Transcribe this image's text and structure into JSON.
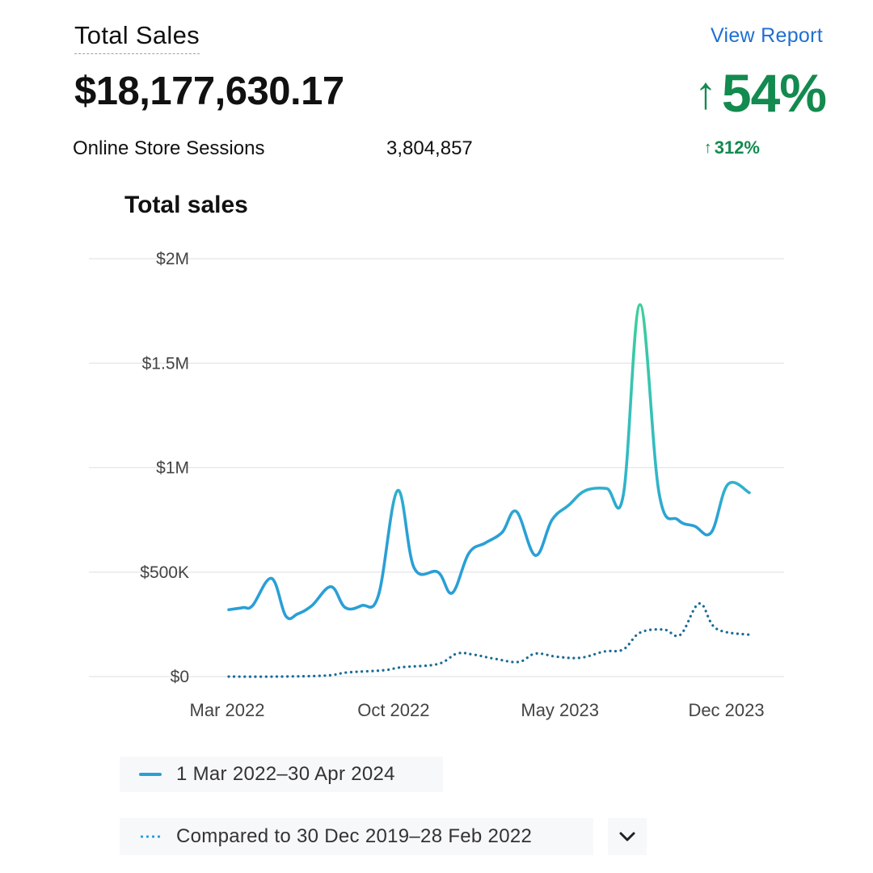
{
  "header": {
    "title": "Total Sales",
    "total": "$18,177,630.17",
    "sessions_label": "Online Store Sessions",
    "sessions_value": "3,804,857",
    "view_report": "View Report",
    "sales_change": "54%",
    "sessions_change": "312%"
  },
  "colors": {
    "positive": "#138a4f",
    "link": "#1f6fd1",
    "line_primary": "#2a9fd6",
    "line_peak": "#3ccf9a",
    "line_compare": "#1a6b96"
  },
  "icons": {
    "up": "arrow-up-icon",
    "chevron": "chevron-down-icon"
  },
  "legend": {
    "current": "1 Mar 2022–30 Apr 2024",
    "compare": "Compared to 30 Dec 2019–28 Feb 2022"
  },
  "chart_data": {
    "type": "line",
    "title": "Total sales",
    "ylim": [
      0,
      2000000
    ],
    "yticks": [
      {
        "value": 0,
        "label": "$0"
      },
      {
        "value": 500000,
        "label": "$500K"
      },
      {
        "value": 1000000,
        "label": "$1M"
      },
      {
        "value": 1500000,
        "label": "$1.5M"
      },
      {
        "value": 2000000,
        "label": "$2M"
      }
    ],
    "xticks": [
      {
        "x": 0,
        "label": "Mar 2022"
      },
      {
        "x": 7,
        "label": "Oct 2022"
      },
      {
        "x": 14,
        "label": "May 2023"
      },
      {
        "x": 21,
        "label": "Dec 2023"
      }
    ],
    "xlim": [
      -0.2,
      25.5
    ],
    "grid": true,
    "series": [
      {
        "name": "1 Mar 2022–30 Apr 2024",
        "style": "solid",
        "points": [
          [
            0,
            320000
          ],
          [
            0.6,
            330000
          ],
          [
            1,
            340000
          ],
          [
            1.8,
            470000
          ],
          [
            2.4,
            290000
          ],
          [
            2.9,
            300000
          ],
          [
            3.5,
            340000
          ],
          [
            4.3,
            430000
          ],
          [
            4.9,
            330000
          ],
          [
            5.6,
            340000
          ],
          [
            6.3,
            390000
          ],
          [
            7.1,
            890000
          ],
          [
            7.8,
            520000
          ],
          [
            8.8,
            500000
          ],
          [
            9.4,
            400000
          ],
          [
            10.1,
            590000
          ],
          [
            10.8,
            640000
          ],
          [
            11.5,
            690000
          ],
          [
            12.1,
            790000
          ],
          [
            12.9,
            580000
          ],
          [
            13.6,
            750000
          ],
          [
            14.3,
            820000
          ],
          [
            15,
            890000
          ],
          [
            15.9,
            900000
          ],
          [
            16.6,
            870000
          ],
          [
            17.3,
            1780000
          ],
          [
            18.1,
            880000
          ],
          [
            18.9,
            750000
          ],
          [
            19.6,
            720000
          ],
          [
            20.3,
            690000
          ],
          [
            21,
            920000
          ],
          [
            21.9,
            880000
          ]
        ]
      },
      {
        "name": "Compared to 30 Dec 2019–28 Feb 2022",
        "style": "dotted",
        "points": [
          [
            0,
            0
          ],
          [
            2,
            0
          ],
          [
            4.1,
            5000
          ],
          [
            5,
            20000
          ],
          [
            6.5,
            30000
          ],
          [
            7.3,
            45000
          ],
          [
            8.8,
            60000
          ],
          [
            9.6,
            110000
          ],
          [
            10.3,
            105000
          ],
          [
            11.2,
            85000
          ],
          [
            12.2,
            70000
          ],
          [
            12.9,
            110000
          ],
          [
            13.8,
            95000
          ],
          [
            14.8,
            90000
          ],
          [
            15.8,
            120000
          ],
          [
            16.6,
            130000
          ],
          [
            17.3,
            210000
          ],
          [
            18.3,
            225000
          ],
          [
            19,
            200000
          ],
          [
            19.8,
            350000
          ],
          [
            20.5,
            230000
          ],
          [
            21.9,
            200000
          ]
        ]
      }
    ]
  }
}
